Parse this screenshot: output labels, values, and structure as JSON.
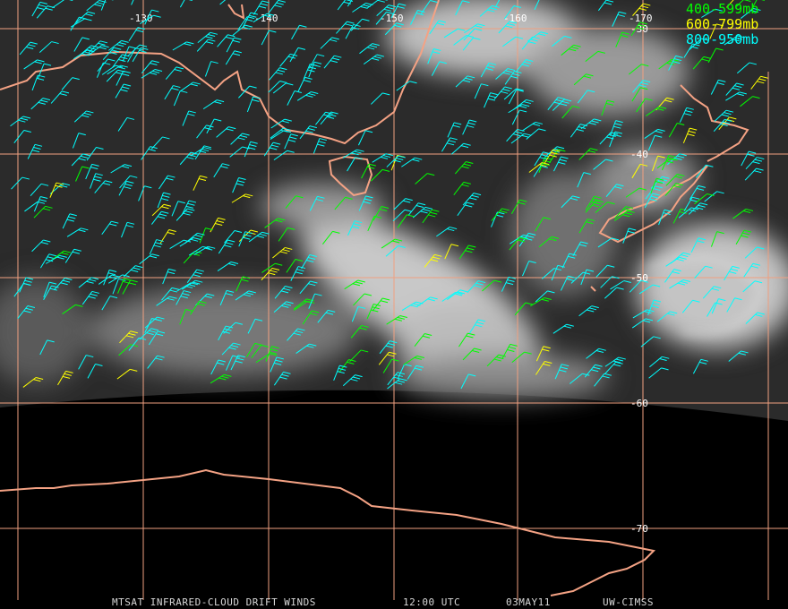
{
  "legend": [
    {
      "label": "400-599mb",
      "color": "#00ff00"
    },
    {
      "label": "600-799mb",
      "color": "#ffff00"
    },
    {
      "label": "800-950mb",
      "color": "#00ffff"
    }
  ],
  "grid": {
    "longitudes": [
      "-130",
      "-140",
      "-150",
      "-160",
      "-170"
    ],
    "latitudes": [
      "-30",
      "-40",
      "-50",
      "-60",
      "-70"
    ]
  },
  "footer": {
    "product": "MTSAT INFRARED-CLOUD DRIFT WINDS",
    "time": "12:00 UTC",
    "date": "03MAY11",
    "source": "UW-CIMSS"
  }
}
